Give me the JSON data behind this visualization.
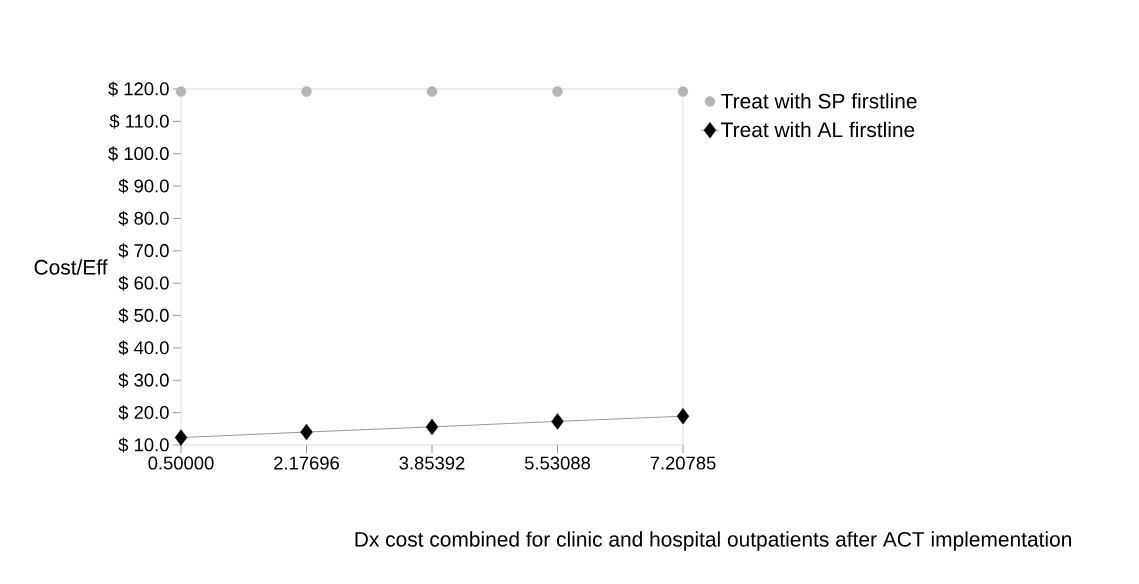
{
  "chart_data": {
    "type": "line",
    "xlabel": "Dx cost combined for clinic and hospital outpatients after ACT implementation",
    "ylabel": "Cost/Eff",
    "x": [
      0.5,
      2.17696,
      3.85392,
      5.53088,
      7.20785
    ],
    "series": [
      {
        "name": "Treat with SP firstline",
        "type": "scatter",
        "color": "#b4b4b4",
        "marker": "circle",
        "values": [
          119.2,
          119.2,
          119.2,
          119.2,
          119.2
        ]
      },
      {
        "name": "Treat with AL firstline",
        "color": "#000000",
        "marker": "diamond",
        "values": [
          12.3,
          14.0,
          15.6,
          17.3,
          18.9
        ]
      }
    ],
    "xlim": [
      0.5,
      7.20785
    ],
    "xticks": [
      {
        "value": 0.5,
        "label": "0.50000"
      },
      {
        "value": 2.17696,
        "label": "2.17696"
      },
      {
        "value": 3.85392,
        "label": "3.85392"
      },
      {
        "value": 5.53088,
        "label": "5.53088"
      },
      {
        "value": 7.20785,
        "label": "7.20785"
      }
    ],
    "ylim": [
      10,
      120
    ],
    "yticks": [
      {
        "value": 10,
        "label": "$ 10.0"
      },
      {
        "value": 20,
        "label": "$ 20.0"
      },
      {
        "value": 30,
        "label": "$ 30.0"
      },
      {
        "value": 40,
        "label": "$ 40.0"
      },
      {
        "value": 50,
        "label": "$ 50.0"
      },
      {
        "value": 60,
        "label": "$ 60.0"
      },
      {
        "value": 70,
        "label": "$ 70.0"
      },
      {
        "value": 80,
        "label": "$ 80.0"
      },
      {
        "value": 90,
        "label": "$ 90.0"
      },
      {
        "value": 100,
        "label": "$ 100.0"
      },
      {
        "value": 110,
        "label": "$ 110.0"
      },
      {
        "value": 120,
        "label": "$ 120.0"
      }
    ],
    "grid": false,
    "legend": "top right"
  }
}
